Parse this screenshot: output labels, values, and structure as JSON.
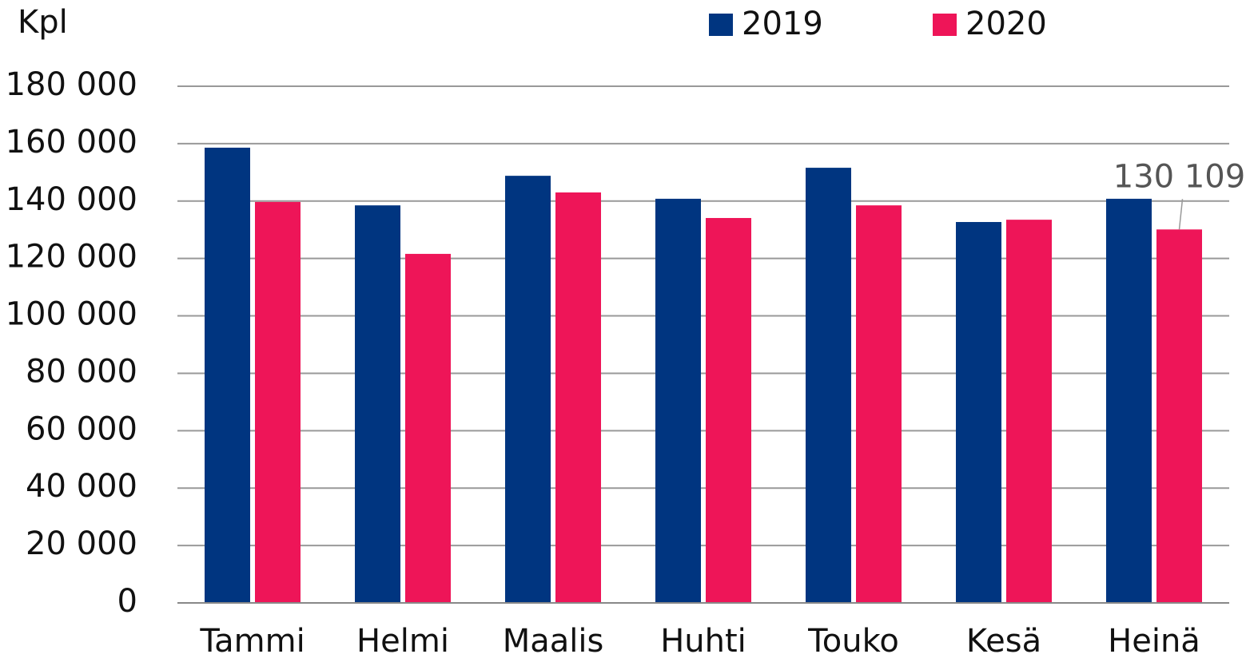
{
  "chart_data": {
    "type": "bar",
    "y_axis_label": "Kpl",
    "categories": [
      "Tammi",
      "Helmi",
      "Maalis",
      "Huhti",
      "Touko",
      "Kesä",
      "Heinä"
    ],
    "series": [
      {
        "name": "2019",
        "color": "#003580",
        "values": [
          158600,
          138500,
          148800,
          140800,
          151600,
          132700,
          140800
        ]
      },
      {
        "name": "2020",
        "color": "#ee1558",
        "values": [
          139700,
          121600,
          143000,
          134100,
          138500,
          133500,
          130109
        ],
        "value_labels": [
          null,
          null,
          null,
          null,
          null,
          null,
          "130 109"
        ]
      }
    ],
    "ylim": [
      0,
      180000
    ],
    "yticks": [
      0,
      {
        "value": 20000,
        "label": "20 000"
      },
      {
        "value": 40000,
        "label": "40 000"
      },
      {
        "value": 60000,
        "label": "60 000"
      },
      {
        "value": 80000,
        "label": "80 000"
      },
      {
        "value": 100000,
        "label": "100 000"
      },
      {
        "value": 120000,
        "label": "120 000"
      },
      {
        "value": 140000,
        "label": "140 000"
      },
      {
        "value": 160000,
        "label": "160 000"
      },
      {
        "value": 180000,
        "label": "180 000"
      }
    ],
    "grid": true,
    "legend": "top"
  }
}
